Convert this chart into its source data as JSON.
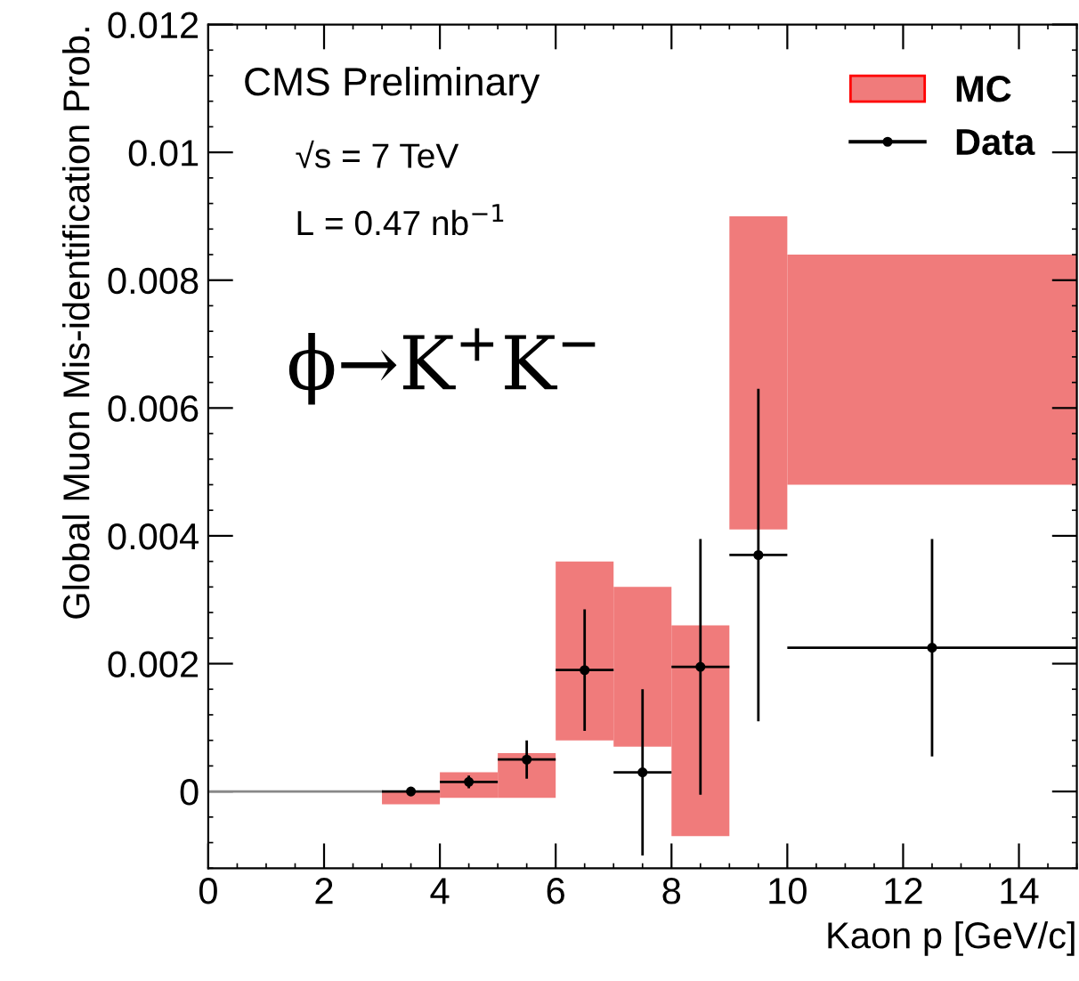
{
  "chart_data": {
    "type": "histogram",
    "xlabel": "Kaon p [GeV/c]",
    "ylabel": "Global Muon Mis-identification Prob.",
    "xlim": [
      0,
      15
    ],
    "ylim": [
      -0.0012,
      0.012
    ],
    "xticks": [
      0,
      2,
      4,
      6,
      8,
      10,
      12,
      14
    ],
    "yticks": [
      {
        "value": 0,
        "label": "0"
      },
      {
        "value": 0.002,
        "label": "0.002"
      },
      {
        "value": 0.004,
        "label": "0.004"
      },
      {
        "value": 0.006,
        "label": "0.006"
      },
      {
        "value": 0.008,
        "label": "0.008"
      },
      {
        "value": 0.01,
        "label": "0.01"
      },
      {
        "value": 0.012,
        "label": "0.012"
      }
    ],
    "grid": false,
    "legend": "top right",
    "annotations": [
      "CMS Preliminary",
      "√s = 7 TeV",
      "L = 0.47 nb$^{−1}$",
      "ϕ→K$^{+}$K$^{−}$"
    ],
    "series": [
      {
        "type": "line",
        "color": "#888888",
        "x": [
          0,
          3
        ],
        "values": [
          0,
          0
        ]
      },
      {
        "name": "MC",
        "color": "#f07b7b",
        "bins": [
          3,
          4,
          5,
          6,
          7,
          8,
          9,
          10,
          15
        ],
        "base": [
          -0.0002,
          -0.0001,
          -0.0001,
          0.0008,
          0.0007,
          -0.0007,
          0.0041,
          0.0048
        ],
        "values": [
          0.0002,
          0.0004,
          0.0007,
          0.0028,
          0.0025,
          0.0033,
          0.0049,
          0.0036
        ]
      },
      {
        "name": "Data",
        "type": "scatter",
        "marker": "circle",
        "color": "#000000",
        "x": [
          3.5,
          4.5,
          5.5,
          6.5,
          7.5,
          8.5,
          9.5,
          12.5
        ],
        "values": [
          0,
          0.00015,
          0.0005,
          0.0019,
          0.0003,
          0.00195,
          0.0037,
          0.00225
        ],
        "errors": [
          5e-05,
          0.0001,
          0.0003,
          0.00095,
          0.0013,
          0.002,
          0.0026,
          0.0017
        ],
        "xerrors": [
          0.5,
          0.5,
          0.5,
          0.5,
          0.5,
          0.5,
          0.5,
          2.5
        ]
      }
    ]
  }
}
